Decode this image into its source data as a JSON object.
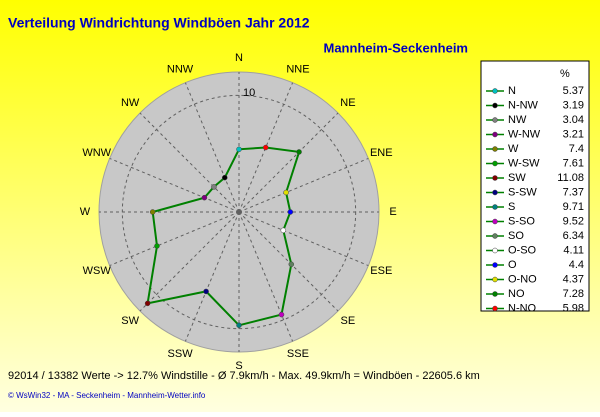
{
  "chart_data": {
    "type": "radar",
    "title": "Verteilung Windrichtung Windböen  Jahr 2012",
    "subtitle": "Mannheim-Seckenheim",
    "direction_labels": [
      "N",
      "NNE",
      "NE",
      "ENE",
      "E",
      "ESE",
      "SE",
      "SSE",
      "S",
      "SSW",
      "SW",
      "WSW",
      "W",
      "WNW",
      "NW",
      "NNW"
    ],
    "legend_header": "%",
    "categories": [
      "N",
      "N-NW",
      "NW",
      "W-NW",
      "W",
      "W-SW",
      "SW",
      "S-SW",
      "S",
      "S-SO",
      "SO",
      "O-SO",
      "O",
      "O-NO",
      "NO",
      "N-NO"
    ],
    "values": [
      5.37,
      3.19,
      3.04,
      3.21,
      7.4,
      7.61,
      11.08,
      7.37,
      9.71,
      9.52,
      6.34,
      4.11,
      4.4,
      4.37,
      7.28,
      5.98
    ],
    "colors": [
      "#00c0c0",
      "#000000",
      "#808080",
      "#800080",
      "#808000",
      "#00a000",
      "#800000",
      "#000080",
      "#008080",
      "#c000c0",
      "#608060",
      "#ffffff",
      "#0000ff",
      "#e0e000",
      "#008000",
      "#ff0000"
    ],
    "line_color": "#008000",
    "rlim": [
      0,
      12
    ],
    "rticks": [
      10
    ],
    "footer": "92014 / 13382 Werte  -> 12.7% Windstille   -   Ø 7.9km/h  -  Max. 49.9km/h = Windböen   -   22605.6 km",
    "credit": "© WsWin32  -  MA - Seckenheim  -  Mannheim-Wetter.info"
  }
}
